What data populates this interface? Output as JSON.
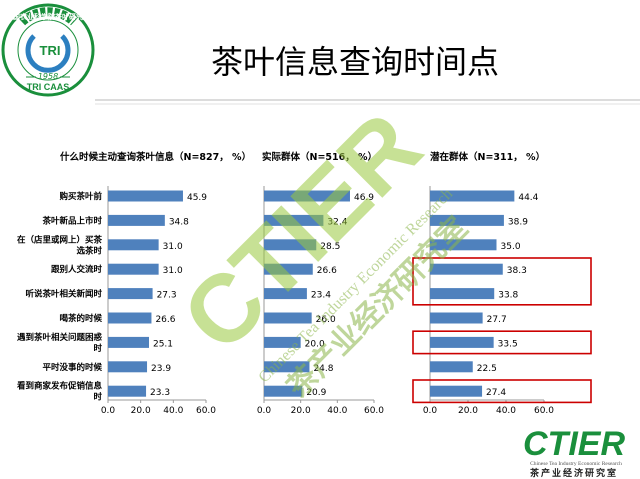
{
  "header": {
    "title": "茶叶信息查询时间点",
    "logo": {
      "ring_text": "中国农业科学院茶叶研究所",
      "center_text": "TRI",
      "year": "1958",
      "bottom_text": "TRI CAAS",
      "colors": {
        "ring": "#1a8f3c",
        "accent": "#2c7fc0"
      }
    }
  },
  "watermark": {
    "big_logo": "CTIER",
    "english": "Chinese Tea Industry Economic Research",
    "chinese": "茶产业经济研究室"
  },
  "footer_logo": {
    "mark": "CTIER",
    "english": "Chinese Tea Industry Economic Research",
    "chinese": "茶产业经济研究室"
  },
  "colors": {
    "bar": "#4f81bd",
    "highlight_box": "#cc0000",
    "header_line": "#c8c8c8",
    "green": "#1a8f3c"
  },
  "chart_data": [
    {
      "type": "bar",
      "orientation": "horizontal",
      "title": "什么时候主动查询茶叶信息（N=827，  %）",
      "categories": [
        "购买茶叶前",
        "茶叶新品上市时",
        "在（店里或网上）买茶选茶时",
        "鉴别人交流时",
        "听说茶叶相关新闻时",
        "喝茶的时候",
        "遇到茶叶相关问题困惑时",
        "平时没事的时候",
        "看到商家发布促销信息时"
      ],
      "category_lines": [
        [
          "购买茶叶前"
        ],
        [
          "茶叶新品上市时"
        ],
        [
          "在（店里或网上）买茶",
          "选茶时"
        ],
        [
          "跟别人交流时"
        ],
        [
          "听说茶叶相关新闻时"
        ],
        [
          "喝茶的时候"
        ],
        [
          "遇到茶叶相关问题困惑",
          "时"
        ],
        [
          "平时没事的时候"
        ],
        [
          "看到商家发布促销信息",
          "时"
        ]
      ],
      "values": [
        45.9,
        34.8,
        31.0,
        31.0,
        27.3,
        26.6,
        25.1,
        23.9,
        23.3
      ],
      "value_labels": [
        "45.9",
        "34.8",
        "31.0",
        "31.0",
        "27.3",
        "26.6",
        "25.1",
        "23.9",
        "23.3"
      ],
      "xlim": [
        0,
        60
      ],
      "xticks": [
        "0.0",
        "20.0",
        "40.0",
        "60.0"
      ]
    },
    {
      "type": "bar",
      "orientation": "horizontal",
      "title": "实际群体（N=516，  %）",
      "values": [
        46.9,
        32.4,
        28.5,
        26.6,
        23.4,
        26.0,
        20.0,
        24.8,
        20.9
      ],
      "value_labels": [
        "46.9",
        "32.4",
        "28.5",
        "26.6",
        "23.4",
        "26.0",
        "20.0",
        "24.8",
        "20.9"
      ],
      "xlim": [
        0,
        60
      ],
      "xticks": [
        "0.0",
        "20.0",
        "40.0",
        "60.0"
      ]
    },
    {
      "type": "bar",
      "orientation": "horizontal",
      "title": "潜在群体（N=311，  %）",
      "values": [
        44.4,
        38.9,
        35.0,
        38.3,
        33.8,
        27.7,
        33.5,
        22.5,
        27.4
      ],
      "value_labels": [
        "44.4",
        "38.9",
        "35.0",
        "38.3",
        "33.8",
        "27.7",
        "33.5",
        "22.5",
        "27.4"
      ],
      "xlim": [
        0,
        60
      ],
      "xticks": [
        "0.0",
        "20.0",
        "40.0",
        "60.0"
      ],
      "highlighted_categories": [
        3,
        4,
        6,
        8
      ]
    }
  ]
}
